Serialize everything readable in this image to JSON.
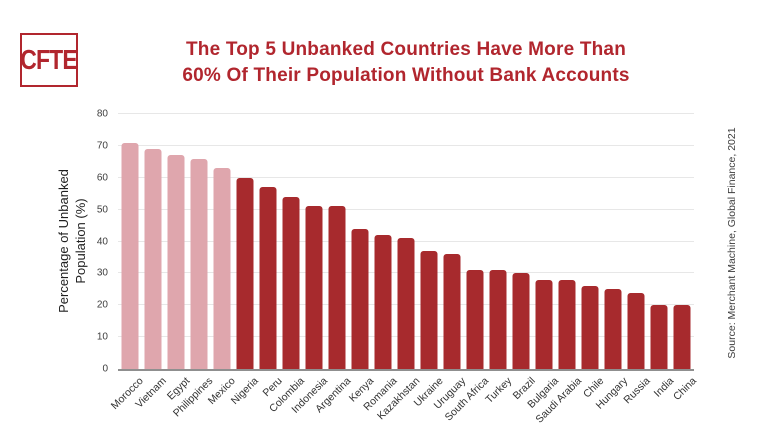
{
  "logo": {
    "text": "CFTE"
  },
  "title": {
    "line1": "The Top 5 Unbanked Countries Have More Than",
    "line2": "60% Of Their Population Without Bank Accounts"
  },
  "source": {
    "text": "Source: Merchant Machine, Global Finance, 2021"
  },
  "theme": {
    "background": "#ffffff",
    "accent_red": "#b1262e",
    "bar_dark_red": "#a72a2d",
    "bar_light_pink": "#dfa6ad",
    "grid_color": "#e7e7e7",
    "axis_color": "#8f8f8f",
    "tick_color": "#3d3d3d",
    "label_color": "#333333"
  },
  "chart_data": {
    "type": "bar",
    "title": "The Top 5 Unbanked Countries Have More Than 60% Of Their Population Without Bank Accounts",
    "xlabel": "",
    "ylabel": "Percentage of Unbanked Population (%)",
    "ylabel_line1": "Percentage of Unbanked",
    "ylabel_line2": "Population (%)",
    "ylim": [
      0,
      80
    ],
    "yticks": [
      0,
      10,
      20,
      30,
      40,
      50,
      60,
      70,
      80
    ],
    "grid": true,
    "legend": "none",
    "categories": [
      "Morocco",
      "Vietnam",
      "Egypt",
      "Philippines",
      "Mexico",
      "Nigeria",
      "Peru",
      "Colombia",
      "Indonesia",
      "Argentina",
      "Kenya",
      "Romania",
      "Kazakhstan",
      "Ukraine",
      "Uruguay",
      "South Africa",
      "Turkey",
      "Brazil",
      "Bulgaria",
      "Saudi Arabia",
      "Chile",
      "Hungary",
      "Russia",
      "India",
      "China"
    ],
    "values": [
      71,
      69,
      67,
      66,
      63,
      60,
      57,
      54,
      51,
      51,
      44,
      42,
      41,
      37,
      36,
      31,
      31,
      30,
      28,
      28,
      26,
      25,
      24,
      20,
      20
    ],
    "highlight_count": 5,
    "highlight_color": "#dfa6ad",
    "bar_color": "#a72a2d"
  }
}
